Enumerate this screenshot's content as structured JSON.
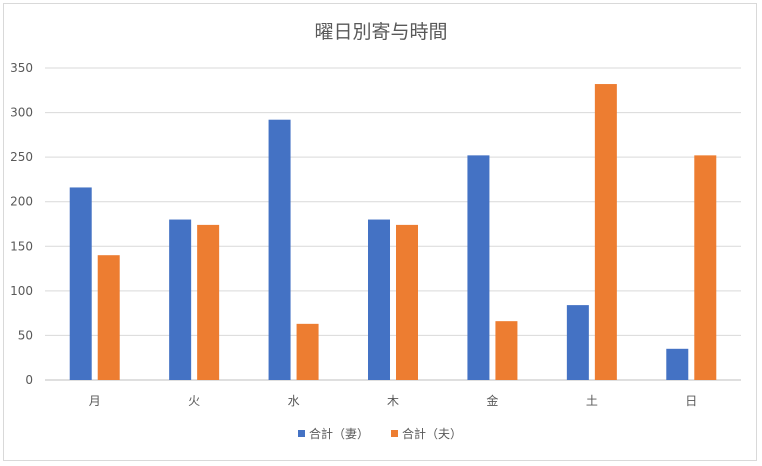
{
  "chart_data": {
    "type": "bar",
    "title": "曜日別寄与時間",
    "categories": [
      "月",
      "火",
      "水",
      "木",
      "金",
      "土",
      "日"
    ],
    "series": [
      {
        "name": "合計（妻）",
        "color": "#4472C4",
        "values": [
          216,
          180,
          292,
          180,
          252,
          84,
          35
        ]
      },
      {
        "name": "合計（夫）",
        "color": "#ED7D31",
        "values": [
          140,
          174,
          63,
          174,
          66,
          332,
          252
        ]
      }
    ],
    "ylim": [
      0,
      350
    ],
    "yticks": [
      0,
      50,
      100,
      150,
      200,
      250,
      300,
      350
    ],
    "grid": true,
    "legend": "bottom"
  }
}
